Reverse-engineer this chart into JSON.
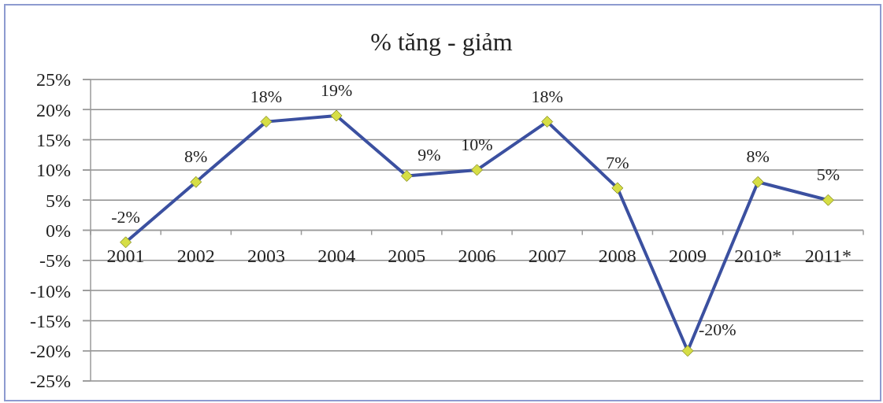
{
  "chart_data": {
    "type": "line",
    "title": "% tăng - giảm",
    "categories": [
      "2001",
      "2002",
      "2003",
      "2004",
      "2005",
      "2006",
      "2007",
      "2008",
      "2009",
      "2010*",
      "2011*"
    ],
    "values": [
      -2,
      8,
      18,
      19,
      9,
      10,
      18,
      7,
      -20,
      8,
      5
    ],
    "value_labels": [
      "-2%",
      "8%",
      "18%",
      "19%",
      "9%",
      "10%",
      "18%",
      "7%",
      "-20%",
      "8%",
      "5%"
    ],
    "color": "#3b50a0",
    "marker": "diamond",
    "grid": "y",
    "ylim": [
      -25,
      25
    ],
    "yticks": [
      {
        "value": -25,
        "label": "-25%"
      },
      {
        "value": -20,
        "label": "-20%"
      },
      {
        "value": -15,
        "label": "-15%"
      },
      {
        "value": -10,
        "label": "-10%"
      },
      {
        "value": -5,
        "label": "-5%"
      },
      {
        "value": 0,
        "label": "0%"
      },
      {
        "value": 5,
        "label": "5%"
      },
      {
        "value": 10,
        "label": "10%"
      },
      {
        "value": 15,
        "label": "15%"
      },
      {
        "value": 20,
        "label": "20%"
      },
      {
        "value": 25,
        "label": "25%"
      }
    ]
  }
}
